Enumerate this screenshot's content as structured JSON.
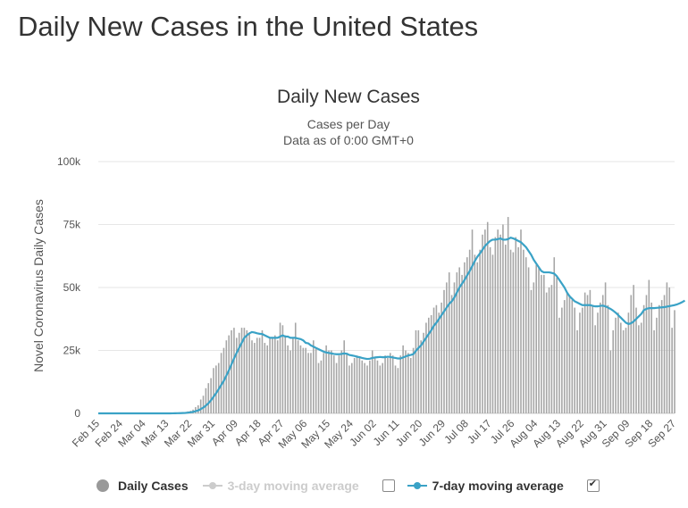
{
  "page": {
    "title": "Daily New Cases in the United States"
  },
  "chart": {
    "title": "Daily New Cases",
    "subtitle1": "Cases per Day",
    "subtitle2": "Data as of 0:00 GMT+0"
  },
  "legend": {
    "daily_cases": "Daily Cases",
    "avg3": "3-day moving average",
    "avg7": "7-day moving average",
    "avg3_checked": false,
    "avg7_checked": true
  },
  "colors": {
    "bars": "#a6a6a6",
    "avg7": "#3aa2c6",
    "avg3_disabled": "#cccccc",
    "grid": "#e6e6e6"
  },
  "chart_data": {
    "type": "bar",
    "ylabel": "Novel Coronavirus Daily Cases",
    "ylim": [
      0,
      100000
    ],
    "yticks": [
      0,
      25000,
      50000,
      75000,
      100000
    ],
    "ytick_labels": [
      "0",
      "25k",
      "50k",
      "75k",
      "100k"
    ],
    "xtick_labels": [
      "Feb 15",
      "Feb 24",
      "Mar 04",
      "Mar 13",
      "Mar 22",
      "Mar 31",
      "Apr 09",
      "Apr 18",
      "Apr 27",
      "May 06",
      "May 15",
      "May 24",
      "Jun 02",
      "Jun 11",
      "Jun 20",
      "Jun 29",
      "Jul 08",
      "Jul 17",
      "Jul 26",
      "Aug 04",
      "Aug 13",
      "Aug 22",
      "Aug 31",
      "Sep 09",
      "Sep 18",
      "Sep 27"
    ],
    "tick_interval_days": 9,
    "series": [
      {
        "name": "Daily Cases",
        "type": "bar",
        "values": [
          0,
          0,
          0,
          0,
          0,
          0,
          0,
          0,
          0,
          0,
          0,
          0,
          0,
          0,
          0,
          0,
          0,
          0,
          0,
          0,
          0,
          0,
          0,
          0,
          0,
          0,
          0,
          0,
          0,
          100,
          100,
          200,
          200,
          400,
          500,
          800,
          1000,
          1500,
          2500,
          3200,
          5500,
          7000,
          10000,
          12000,
          14000,
          18000,
          19000,
          20000,
          24000,
          26000,
          29000,
          31000,
          33000,
          34000,
          30000,
          32000,
          34000,
          34000,
          33000,
          32000,
          29000,
          28000,
          30000,
          30000,
          33000,
          28000,
          27000,
          30000,
          30000,
          31000,
          29000,
          36000,
          35000,
          31000,
          27000,
          25000,
          30000,
          36000,
          29000,
          27000,
          26000,
          26000,
          24000,
          24000,
          29000,
          26000,
          20000,
          21000,
          24000,
          27000,
          25000,
          25000,
          23000,
          20000,
          23000,
          25000,
          29000,
          24000,
          19000,
          20000,
          22000,
          23000,
          22000,
          21000,
          20000,
          19000,
          21000,
          25000,
          22000,
          21000,
          19000,
          20000,
          23000,
          22000,
          24000,
          23000,
          19000,
          18000,
          23000,
          27000,
          25000,
          24000,
          22000,
          26000,
          33000,
          33000,
          29000,
          32000,
          36000,
          38000,
          39000,
          42000,
          43000,
          40000,
          44000,
          49000,
          52000,
          56000,
          47000,
          52000,
          56000,
          58000,
          55000,
          60000,
          62000,
          65000,
          73000,
          63000,
          60000,
          65000,
          71000,
          73000,
          76000,
          66000,
          63000,
          70000,
          73000,
          71000,
          75000,
          67000,
          78000,
          65000,
          64000,
          70000,
          66000,
          73000,
          65000,
          62000,
          58000,
          49000,
          52000,
          59000,
          58000,
          55000,
          55000,
          48000,
          50000,
          51000,
          62000,
          54000,
          38000,
          42000,
          45000,
          48000,
          47000,
          45000,
          42000,
          33000,
          40000,
          42000,
          48000,
          47000,
          49000,
          43000,
          35000,
          40000,
          44000,
          47000,
          52000,
          43000,
          25000,
          33000,
          38000,
          40000,
          36000,
          33000,
          34000,
          40000,
          47000,
          51000,
          42000,
          35000,
          36000,
          43000,
          47000,
          53000,
          44000,
          33000,
          38000,
          43000,
          45000,
          47000,
          52000,
          50000,
          34000,
          41000
        ],
        "color": "#a6a6a6"
      },
      {
        "name": "7-day moving average",
        "type": "line",
        "values": [
          0,
          0,
          0,
          0,
          0,
          0,
          0,
          0,
          0,
          0,
          0,
          0,
          0,
          0,
          0,
          0,
          0,
          0,
          0,
          0,
          0,
          0,
          0,
          0,
          0,
          0,
          0,
          0,
          0,
          30,
          40,
          60,
          80,
          120,
          180,
          280,
          410,
          580,
          860,
          1160,
          1690,
          2270,
          3090,
          4030,
          5200,
          6600,
          8000,
          9600,
          11300,
          12900,
          15000,
          17100,
          19500,
          21800,
          24000,
          26000,
          28000,
          30000,
          31000,
          31800,
          32300,
          32100,
          31800,
          31600,
          31500,
          31000,
          30500,
          30000,
          30000,
          30000,
          30000,
          30500,
          31000,
          30500,
          30500,
          30000,
          30000,
          30000,
          29700,
          29500,
          29000,
          28000,
          27800,
          27000,
          26500,
          26000,
          25500,
          25000,
          24500,
          24200,
          24000,
          23800,
          23600,
          23500,
          23500,
          23600,
          23800,
          23700,
          23200,
          23000,
          22800,
          22500,
          22300,
          22000,
          21800,
          21600,
          21700,
          22000,
          22200,
          22300,
          22400,
          22300,
          22300,
          22500,
          22400,
          22200,
          22000,
          21800,
          21800,
          22200,
          22600,
          23000,
          23200,
          23500,
          24800,
          26000,
          27000,
          28500,
          30000,
          31500,
          33000,
          34800,
          36000,
          37500,
          39000,
          40500,
          42000,
          43500,
          44500,
          46000,
          48000,
          50000,
          51500,
          53000,
          54800,
          56500,
          58500,
          60500,
          62200,
          63500,
          65000,
          66500,
          67500,
          68500,
          69000,
          69000,
          69200,
          69500,
          69000,
          69000,
          69200,
          69800,
          69500,
          69000,
          68500,
          68000,
          67000,
          66000,
          64500,
          63000,
          61000,
          59500,
          58000,
          56500,
          56000,
          56000,
          56000,
          55800,
          55500,
          54500,
          53000,
          51500,
          50000,
          48000,
          46500,
          45500,
          44500,
          44000,
          43500,
          43000,
          43000,
          43000,
          43000,
          42700,
          42500,
          42500,
          42700,
          42800,
          42500,
          42000,
          41500,
          40800,
          40000,
          39000,
          38000,
          37000,
          36000,
          35500,
          35800,
          36500,
          37500,
          38500,
          39500,
          41000,
          41500,
          41800,
          41800,
          41800,
          41900,
          42000,
          42100,
          42200,
          42400,
          42600,
          42800,
          43000,
          43300,
          43700,
          44200,
          44800
        ]
      }
    ],
    "legend_position": "bottom",
    "grid": true
  }
}
